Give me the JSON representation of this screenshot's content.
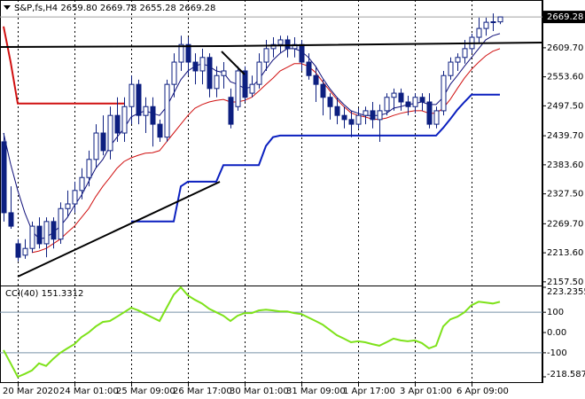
{
  "chart_data": {
    "type": "candlestick",
    "title": "S&P,fs,H4",
    "last_bar_labels": [
      "2659.80",
      "2669.78",
      "2655.28",
      "2669.28"
    ],
    "categories": [
      null,
      null,
      "20 Mar 2020",
      null,
      null,
      null,
      null,
      null,
      null,
      null,
      "24 Mar 01:00",
      null,
      null,
      null,
      null,
      null,
      null,
      null,
      "25 Mar 09:00",
      null,
      null,
      null,
      null,
      null,
      null,
      null,
      "26 Mar 17:00",
      null,
      null,
      null,
      null,
      null,
      null,
      null,
      "30 Mar 01:00",
      null,
      null,
      null,
      null,
      null,
      null,
      null,
      "31 Mar 09:00",
      null,
      null,
      null,
      null,
      null,
      null,
      null,
      "1 Apr 17:00",
      null,
      null,
      null,
      null,
      null,
      null,
      null,
      "3 Apr 01:00",
      null,
      null,
      null,
      null,
      null,
      null,
      null,
      "6 Apr 09:00",
      null,
      null,
      null,
      null
    ],
    "open": [
      2428,
      2291,
      2231,
      2209,
      2222,
      2265,
      2231,
      2274,
      2240,
      2299,
      2308,
      2334,
      2359,
      2394,
      2445,
      2411,
      2479,
      2445,
      2496,
      2539,
      2479,
      2496,
      2462,
      2437,
      2539,
      2582,
      2616,
      2582,
      2565,
      2591,
      2531,
      2556,
      2514,
      2496,
      2565,
      2522,
      2539,
      2582,
      2608,
      2616,
      2625,
      2608,
      2616,
      2582,
      2556,
      2539,
      2514,
      2496,
      2479,
      2471,
      2462,
      2479,
      2488,
      2471,
      2488,
      2514,
      2522,
      2505,
      2496,
      2514,
      2505,
      2462,
      2488,
      2556,
      2582,
      2591,
      2608,
      2630,
      2647,
      2659,
      2659.8
    ],
    "high": [
      2445,
      2342,
      2240,
      2240,
      2274,
      2282,
      2282,
      2282,
      2311,
      2334,
      2351,
      2377,
      2411,
      2462,
      2479,
      2496,
      2514,
      2514,
      2556,
      2548,
      2514,
      2514,
      2471,
      2548,
      2599,
      2633,
      2630,
      2599,
      2608,
      2599,
      2574,
      2582,
      2531,
      2574,
      2574,
      2556,
      2599,
      2625,
      2630,
      2633,
      2633,
      2630,
      2625,
      2599,
      2574,
      2548,
      2522,
      2514,
      2496,
      2488,
      2493,
      2496,
      2505,
      2500,
      2522,
      2531,
      2531,
      2517,
      2522,
      2522,
      2522,
      2496,
      2565,
      2591,
      2599,
      2625,
      2637,
      2668,
      2668,
      2676,
      2669.78
    ],
    "low": [
      2274,
      2260,
      2197,
      2202,
      2214,
      2222,
      2205,
      2222,
      2231,
      2282,
      2291,
      2317,
      2342,
      2377,
      2402,
      2394,
      2428,
      2428,
      2462,
      2462,
      2445,
      2419,
      2428,
      2428,
      2514,
      2565,
      2556,
      2539,
      2539,
      2514,
      2514,
      2531,
      2454,
      2488,
      2505,
      2514,
      2531,
      2565,
      2591,
      2599,
      2591,
      2591,
      2565,
      2548,
      2505,
      2479,
      2471,
      2462,
      2454,
      2437,
      2454,
      2462,
      2454,
      2428,
      2479,
      2488,
      2488,
      2479,
      2483,
      2488,
      2454,
      2454,
      2479,
      2548,
      2565,
      2579,
      2599,
      2620,
      2633,
      2642,
      2655.28
    ],
    "close": [
      2291,
      2265,
      2205,
      2222,
      2265,
      2231,
      2274,
      2240,
      2299,
      2308,
      2334,
      2359,
      2394,
      2445,
      2411,
      2479,
      2445,
      2496,
      2539,
      2479,
      2496,
      2462,
      2437,
      2539,
      2582,
      2616,
      2582,
      2565,
      2591,
      2531,
      2556,
      2565,
      2462,
      2565,
      2514,
      2539,
      2582,
      2608,
      2616,
      2625,
      2608,
      2616,
      2582,
      2556,
      2539,
      2514,
      2496,
      2479,
      2471,
      2462,
      2479,
      2488,
      2471,
      2488,
      2514,
      2522,
      2505,
      2496,
      2514,
      2505,
      2462,
      2488,
      2556,
      2582,
      2591,
      2608,
      2630,
      2647,
      2659,
      2660,
      2669.28
    ],
    "bull_color": "#ffffff",
    "bear_color": "#0d1f80",
    "wick_color": "#0d1f80",
    "lines": [
      {
        "color": "#10107a",
        "values": [
          2445,
          2385,
          2334,
          2291,
          2257,
          2240,
          2243,
          2253,
          2265,
          2282,
          2305,
          2325,
          2351,
          2377,
          2394,
          2419,
          2437,
          2454,
          2476,
          2483,
          2488,
          2483,
          2479,
          2496,
          2522,
          2548,
          2565,
          2574,
          2579,
          2574,
          2565,
          2562,
          2544,
          2539,
          2531,
          2534,
          2548,
          2568,
          2586,
          2599,
          2608,
          2608,
          2603,
          2591,
          2574,
          2551,
          2531,
          2514,
          2500,
          2488,
          2483,
          2479,
          2479,
          2479,
          2483,
          2493,
          2496,
          2500,
          2502,
          2505,
          2500,
          2500,
          2514,
          2539,
          2556,
          2574,
          2591,
          2608,
          2625,
          2633,
          2637
        ]
      },
      {
        "color": "#d01010",
        "values": [
          null,
          null,
          null,
          null,
          2214,
          2217,
          2222,
          2231,
          2240,
          2253,
          2265,
          2282,
          2299,
          2322,
          2342,
          2359,
          2377,
          2390,
          2397,
          2402,
          2406,
          2407,
          2411,
          2428,
          2445,
          2462,
          2479,
          2493,
          2500,
          2505,
          2508,
          2510,
          2505,
          2505,
          2508,
          2514,
          2526,
          2539,
          2551,
          2565,
          2572,
          2579,
          2579,
          2574,
          2562,
          2544,
          2527,
          2510,
          2496,
          2484,
          2479,
          2476,
          2472,
          2471,
          2474,
          2479,
          2483,
          2486,
          2488,
          2488,
          2483,
          2483,
          2493,
          2510,
          2531,
          2551,
          2568,
          2582,
          2594,
          2603,
          2608
        ]
      },
      {
        "color": "#d01010",
        "values": [
          2651,
          2582,
          2502,
          2502,
          2502,
          2502,
          2502,
          2502,
          2502,
          2502,
          2502,
          2502,
          2502,
          2502,
          2502,
          2502,
          2502,
          2502,
          null,
          null,
          null,
          null,
          null,
          null,
          null,
          null,
          null,
          null,
          null,
          null,
          null,
          null,
          null,
          null,
          null,
          null,
          null,
          null,
          null,
          null,
          null,
          null,
          null,
          null,
          null,
          null,
          null,
          null,
          null,
          null,
          null,
          null,
          null,
          null,
          null,
          null,
          null,
          null,
          null,
          null,
          null,
          null,
          null,
          null,
          null,
          null,
          null,
          null,
          null,
          null,
          null
        ]
      },
      {
        "color": "#0a1fbf",
        "values": [
          null,
          null,
          null,
          null,
          null,
          null,
          null,
          null,
          null,
          null,
          null,
          null,
          null,
          null,
          null,
          null,
          null,
          null,
          2274,
          2274,
          2274,
          2274,
          2274,
          2274,
          2274,
          2342,
          2351,
          2351,
          2351,
          2351,
          2351,
          2383,
          2383,
          2383,
          2383,
          2383,
          2383,
          2420,
          2437,
          2440,
          2440,
          2440,
          2440,
          2440,
          2440,
          2440,
          2440,
          2440,
          2440,
          2440,
          2440,
          2440,
          2440,
          2440,
          2440,
          2440,
          2440,
          2440,
          2440,
          2440,
          2440,
          2440,
          2455,
          2472,
          2490,
          2505,
          2519,
          2519,
          2519,
          2519,
          2519
        ]
      }
    ],
    "ylim": [
      2150.4,
      2702
    ],
    "yticks": [
      {
        "value": 2609.7,
        "label": "2609.70"
      },
      {
        "value": 2553.6,
        "label": "2553.60"
      },
      {
        "value": 2497.5,
        "label": "2497.50"
      },
      {
        "value": 2439.7,
        "label": "2439.70"
      },
      {
        "value": 2383.6,
        "label": "2383.60"
      },
      {
        "value": 2327.5,
        "label": "2327.50"
      },
      {
        "value": 2269.7,
        "label": "2269.70"
      },
      {
        "value": 2213.6,
        "label": "2213.60"
      },
      {
        "value": 2157.5,
        "label": "2157.50"
      }
    ],
    "indicator": {
      "title": "CCI(40)",
      "color": "#7ee21a",
      "values": [
        -87,
        -152,
        -218.5875,
        -204,
        -187,
        -152,
        -165,
        -130,
        -100,
        -78,
        -57,
        -22,
        0,
        30,
        52,
        57,
        78,
        100,
        122,
        109,
        91,
        74,
        57,
        122,
        187,
        223.2355,
        183,
        161,
        143,
        117,
        100,
        83,
        57,
        83,
        96,
        96,
        109,
        113,
        109,
        104,
        104,
        96,
        91,
        74,
        57,
        39,
        13,
        -13,
        -30,
        -48,
        -43,
        -48,
        -57,
        -65,
        -48,
        -30,
        -39,
        -43,
        -39,
        -52,
        -78,
        -65,
        30,
        65,
        78,
        100,
        135,
        152,
        148,
        143,
        151.3312
      ],
      "ylim": [
        -218.5875,
        223.2355
      ],
      "yticks": [
        223.2355,
        100,
        {
          "value": 0,
          "label": "0.00"
        },
        -100,
        -218.5875
      ],
      "levels": [
        100,
        -100
      ]
    }
  }
}
